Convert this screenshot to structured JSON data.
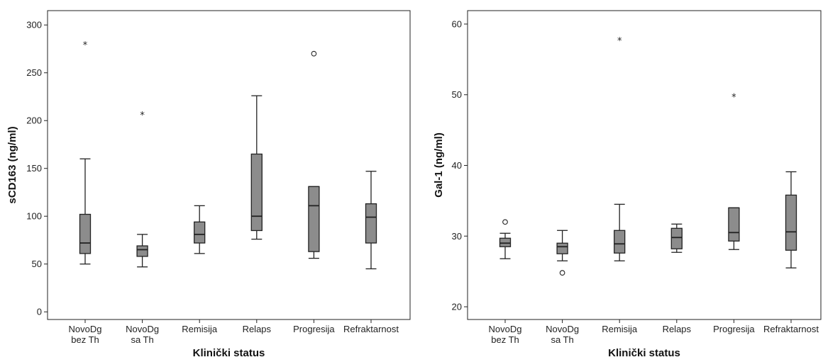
{
  "chart_data": [
    {
      "type": "box",
      "xlabel": "Klinički status",
      "ylabel": "sCD163 (ng/ml)",
      "ylim": [
        -8,
        315
      ],
      "yticks": [
        0,
        50,
        100,
        150,
        200,
        250,
        300
      ],
      "categories": [
        [
          "NovoDg",
          "bez Th"
        ],
        [
          "NovoDg",
          "sa Th"
        ],
        [
          "Remisija"
        ],
        [
          "Relaps"
        ],
        [
          "Progresija"
        ],
        [
          "Refraktarnost"
        ]
      ],
      "boxes": [
        {
          "whisker_low": 50,
          "q1": 61,
          "median": 72,
          "q3": 102,
          "whisker_high": 160
        },
        {
          "whisker_low": 47,
          "q1": 58,
          "median": 65,
          "q3": 69,
          "whisker_high": 81
        },
        {
          "whisker_low": 61,
          "q1": 72,
          "median": 81,
          "q3": 94,
          "whisker_high": 111
        },
        {
          "whisker_low": 76,
          "q1": 85,
          "median": 100,
          "q3": 165,
          "whisker_high": 226
        },
        {
          "whisker_low": 56,
          "q1": 63,
          "median": 111,
          "q3": 131,
          "whisker_high": 131
        },
        {
          "whisker_low": 45,
          "q1": 72,
          "median": 99,
          "q3": 113,
          "whisker_high": 147
        }
      ],
      "outliers": [
        {
          "category_index": 0,
          "value": 280,
          "marker": "*"
        },
        {
          "category_index": 1,
          "value": 207,
          "marker": "*"
        },
        {
          "category_index": 4,
          "value": 270,
          "marker": "o"
        }
      ],
      "grid": false,
      "box_color": "#8c8c8c"
    },
    {
      "type": "box",
      "xlabel": "Klinički status",
      "ylabel": "Gal-1 (ng/ml)",
      "ylim": [
        18.2,
        61.9
      ],
      "yticks": [
        20,
        30,
        40,
        50,
        60
      ],
      "categories": [
        [
          "NovoDg",
          "bez Th"
        ],
        [
          "NovoDg",
          "sa Th"
        ],
        [
          "Remisija"
        ],
        [
          "Relaps"
        ],
        [
          "Progresija"
        ],
        [
          "Refraktarnost"
        ]
      ],
      "boxes": [
        {
          "whisker_low": 26.8,
          "q1": 28.5,
          "median": 29.0,
          "q3": 29.7,
          "whisker_high": 30.4
        },
        {
          "whisker_low": 26.5,
          "q1": 27.5,
          "median": 28.5,
          "q3": 29.0,
          "whisker_high": 30.8
        },
        {
          "whisker_low": 26.5,
          "q1": 27.6,
          "median": 28.9,
          "q3": 30.8,
          "whisker_high": 34.5
        },
        {
          "whisker_low": 27.7,
          "q1": 28.2,
          "median": 29.8,
          "q3": 31.1,
          "whisker_high": 31.7
        },
        {
          "whisker_low": 28.1,
          "q1": 29.3,
          "median": 30.5,
          "q3": 34.0,
          "whisker_high": 34.0
        },
        {
          "whisker_low": 25.5,
          "q1": 28.0,
          "median": 30.6,
          "q3": 35.8,
          "whisker_high": 39.1
        }
      ],
      "outliers": [
        {
          "category_index": 0,
          "value": 32.0,
          "marker": "o"
        },
        {
          "category_index": 1,
          "value": 24.8,
          "marker": "o"
        },
        {
          "category_index": 2,
          "value": 57.8,
          "marker": "*"
        },
        {
          "category_index": 4,
          "value": 49.8,
          "marker": "*"
        }
      ],
      "grid": false,
      "box_color": "#8c8c8c"
    }
  ]
}
